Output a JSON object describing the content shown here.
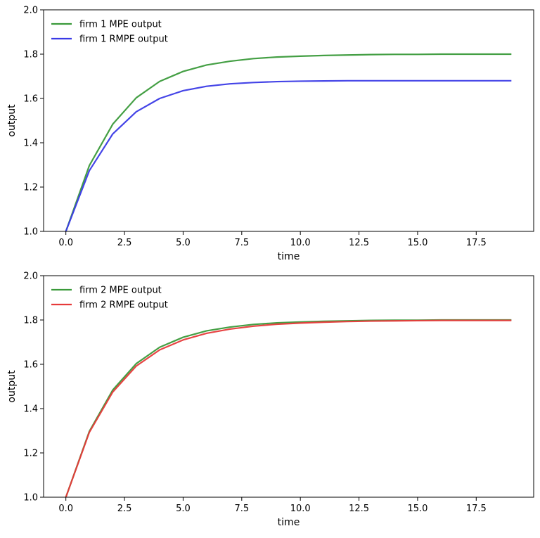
{
  "chart_data": [
    {
      "type": "line",
      "title": "",
      "xlabel": "time",
      "ylabel": "output",
      "xlim": [
        -0.95,
        19.95
      ],
      "ylim": [
        1.0,
        2.0
      ],
      "xticks": [
        0.0,
        2.5,
        5.0,
        7.5,
        10.0,
        12.5,
        15.0,
        17.5
      ],
      "yticks": [
        1.0,
        1.2,
        1.4,
        1.6,
        1.8,
        2.0
      ],
      "xtick_labels": [
        "0.0",
        "2.5",
        "5.0",
        "7.5",
        "10.0",
        "12.5",
        "15.0",
        "17.5"
      ],
      "ytick_labels": [
        "1.0",
        "1.2",
        "1.4",
        "1.6",
        "1.8",
        "2.0"
      ],
      "grid": false,
      "legend_position": "top-left",
      "x": [
        0,
        1,
        2,
        3,
        4,
        5,
        6,
        7,
        8,
        9,
        10,
        11,
        12,
        13,
        14,
        15,
        16,
        17,
        18,
        19
      ],
      "series": [
        {
          "name": "firm 1 MPE output",
          "color": "#3a9a3a",
          "values": [
            1.0,
            1.297,
            1.484,
            1.603,
            1.677,
            1.722,
            1.751,
            1.768,
            1.78,
            1.787,
            1.791,
            1.794,
            1.796,
            1.798,
            1.799,
            1.799,
            1.8,
            1.8,
            1.8,
            1.8
          ]
        },
        {
          "name": "firm 1 RMPE output",
          "color": "#3a3ae6",
          "values": [
            1.0,
            1.274,
            1.44,
            1.54,
            1.6,
            1.635,
            1.655,
            1.666,
            1.672,
            1.676,
            1.678,
            1.679,
            1.68,
            1.68,
            1.68,
            1.68,
            1.68,
            1.68,
            1.68,
            1.68
          ]
        }
      ]
    },
    {
      "type": "line",
      "title": "",
      "xlabel": "time",
      "ylabel": "output",
      "xlim": [
        -0.95,
        19.95
      ],
      "ylim": [
        1.0,
        2.0
      ],
      "xticks": [
        0.0,
        2.5,
        5.0,
        7.5,
        10.0,
        12.5,
        15.0,
        17.5
      ],
      "yticks": [
        1.0,
        1.2,
        1.4,
        1.6,
        1.8,
        2.0
      ],
      "xtick_labels": [
        "0.0",
        "2.5",
        "5.0",
        "7.5",
        "10.0",
        "12.5",
        "15.0",
        "17.5"
      ],
      "ytick_labels": [
        "1.0",
        "1.2",
        "1.4",
        "1.6",
        "1.8",
        "2.0"
      ],
      "grid": false,
      "legend_position": "top-left",
      "x": [
        0,
        1,
        2,
        3,
        4,
        5,
        6,
        7,
        8,
        9,
        10,
        11,
        12,
        13,
        14,
        15,
        16,
        17,
        18,
        19
      ],
      "series": [
        {
          "name": "firm 2 MPE output",
          "color": "#3a9a3a",
          "values": [
            1.0,
            1.297,
            1.484,
            1.603,
            1.677,
            1.722,
            1.751,
            1.768,
            1.78,
            1.787,
            1.791,
            1.794,
            1.796,
            1.798,
            1.799,
            1.799,
            1.8,
            1.8,
            1.8,
            1.8
          ]
        },
        {
          "name": "firm 2 RMPE output",
          "color": "#e63a3a",
          "values": [
            1.0,
            1.293,
            1.475,
            1.592,
            1.665,
            1.71,
            1.74,
            1.759,
            1.772,
            1.781,
            1.786,
            1.79,
            1.793,
            1.795,
            1.796,
            1.797,
            1.798,
            1.798,
            1.798,
            1.798
          ]
        }
      ]
    }
  ]
}
